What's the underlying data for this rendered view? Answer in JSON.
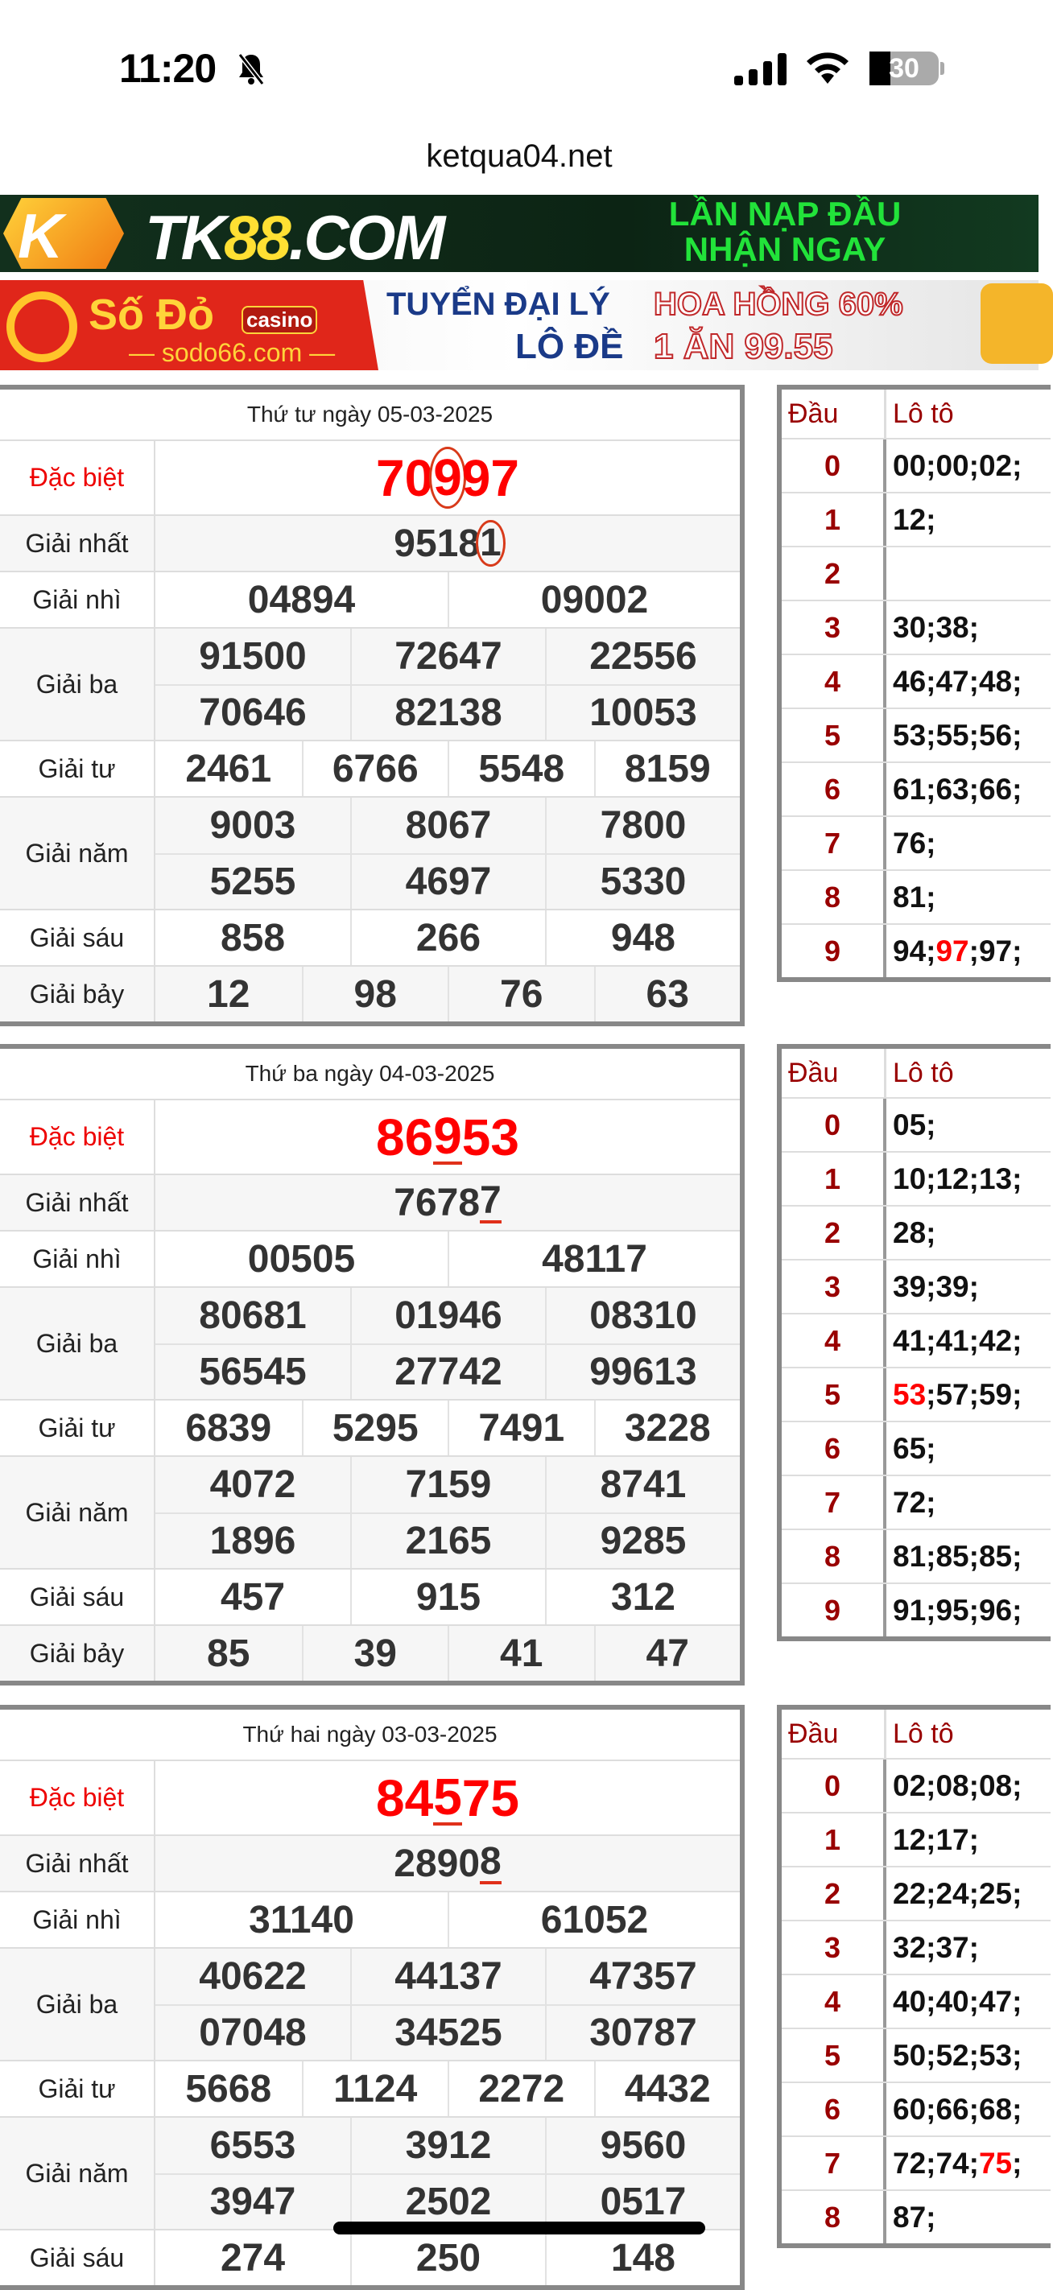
{
  "status_bar": {
    "time": "11:20",
    "silent_icon": "bell-slash-icon",
    "battery": "30"
  },
  "browser": {
    "url": "ketqua04.net"
  },
  "ads": {
    "tk88": {
      "logo": "K",
      "brand_prefix": "TK",
      "brand_num": "88",
      "brand_suffix": ".COM",
      "line1": "LẦN NẠP ĐẦU",
      "line2": "NHẬN NGAY"
    },
    "sodo": {
      "name": "Số Đỏ",
      "tag": "casino",
      "domain": "— sodo66.com —",
      "line1a": "TUYỂN ĐẠI LÝ",
      "line1b": "HOA HỒNG 60%",
      "line2a": "LÔ ĐỀ",
      "line2b": "1 ĂN 99.55"
    }
  },
  "labels": {
    "special": "Đặc biệt",
    "first": "Giải nhất",
    "second": "Giải nhì",
    "third": "Giải ba",
    "fourth": "Giải tư",
    "fifth": "Giải năm",
    "sixth": "Giải sáu",
    "seventh": "Giải bảy",
    "dau": "Đầu",
    "loto": "Lô tô"
  },
  "colors": {
    "special": "#ff0000",
    "dau": "#990000",
    "highlight": "#ff0000",
    "annotation": "#d83a1a"
  },
  "days": [
    {
      "title": "Thứ tư ngày 05-03-2025",
      "special": {
        "pre": "70",
        "mark": "9",
        "post": "97",
        "mark_type": "circle"
      },
      "first": {
        "pre": "9518",
        "mark": "1",
        "post": "",
        "mark_type": "circle"
      },
      "second": [
        "04894",
        "09002"
      ],
      "third": [
        "91500",
        "72647",
        "22556",
        "70646",
        "82138",
        "10053"
      ],
      "fourth": [
        "2461",
        "6766",
        "5548",
        "8159"
      ],
      "fifth": [
        "9003",
        "8067",
        "7800",
        "5255",
        "4697",
        "5330"
      ],
      "sixth": [
        "858",
        "266",
        "948"
      ],
      "seventh": [
        "12",
        "98",
        "76",
        "63"
      ],
      "loto": [
        {
          "head": "0",
          "nums": [
            {
              "n": "00"
            },
            {
              "n": "00"
            },
            {
              "n": "02"
            }
          ]
        },
        {
          "head": "1",
          "nums": [
            {
              "n": "12"
            }
          ]
        },
        {
          "head": "2",
          "nums": []
        },
        {
          "head": "3",
          "nums": [
            {
              "n": "30"
            },
            {
              "n": "38"
            }
          ]
        },
        {
          "head": "4",
          "nums": [
            {
              "n": "46"
            },
            {
              "n": "47"
            },
            {
              "n": "48"
            }
          ]
        },
        {
          "head": "5",
          "nums": [
            {
              "n": "53"
            },
            {
              "n": "55"
            },
            {
              "n": "56"
            }
          ]
        },
        {
          "head": "6",
          "nums": [
            {
              "n": "61"
            },
            {
              "n": "63"
            },
            {
              "n": "66"
            }
          ]
        },
        {
          "head": "7",
          "nums": [
            {
              "n": "76"
            }
          ]
        },
        {
          "head": "8",
          "nums": [
            {
              "n": "81"
            }
          ]
        },
        {
          "head": "9",
          "nums": [
            {
              "n": "94"
            },
            {
              "n": "97",
              "hot": true
            },
            {
              "n": "97"
            }
          ]
        }
      ]
    },
    {
      "title": "Thứ ba ngày 04-03-2025",
      "special": {
        "pre": "86",
        "mark": "9",
        "post": "53",
        "mark_type": "underline"
      },
      "first": {
        "pre": "7678",
        "mark": "7",
        "post": "",
        "mark_type": "underline"
      },
      "second": [
        "00505",
        "48117"
      ],
      "third": [
        "80681",
        "01946",
        "08310",
        "56545",
        "27742",
        "99613"
      ],
      "fourth": [
        "6839",
        "5295",
        "7491",
        "3228"
      ],
      "fifth": [
        "4072",
        "7159",
        "8741",
        "1896",
        "2165",
        "9285"
      ],
      "sixth": [
        "457",
        "915",
        "312"
      ],
      "seventh": [
        "85",
        "39",
        "41",
        "47"
      ],
      "loto": [
        {
          "head": "0",
          "nums": [
            {
              "n": "05"
            }
          ]
        },
        {
          "head": "1",
          "nums": [
            {
              "n": "10"
            },
            {
              "n": "12"
            },
            {
              "n": "13"
            }
          ]
        },
        {
          "head": "2",
          "nums": [
            {
              "n": "28"
            }
          ]
        },
        {
          "head": "3",
          "nums": [
            {
              "n": "39"
            },
            {
              "n": "39"
            }
          ]
        },
        {
          "head": "4",
          "nums": [
            {
              "n": "41"
            },
            {
              "n": "41"
            },
            {
              "n": "42"
            }
          ]
        },
        {
          "head": "5",
          "nums": [
            {
              "n": "53",
              "hot": true
            },
            {
              "n": "57"
            },
            {
              "n": "59"
            }
          ]
        },
        {
          "head": "6",
          "nums": [
            {
              "n": "65"
            }
          ]
        },
        {
          "head": "7",
          "nums": [
            {
              "n": "72"
            }
          ]
        },
        {
          "head": "8",
          "nums": [
            {
              "n": "81"
            },
            {
              "n": "85"
            },
            {
              "n": "85"
            }
          ]
        },
        {
          "head": "9",
          "nums": [
            {
              "n": "91"
            },
            {
              "n": "95"
            },
            {
              "n": "96"
            }
          ]
        }
      ]
    },
    {
      "title": "Thứ hai ngày 03-03-2025",
      "special": {
        "pre": "84",
        "mark": "5",
        "post": "75",
        "mark_type": "underline"
      },
      "first": {
        "pre": "2890",
        "mark": "8",
        "post": "",
        "mark_type": "underline"
      },
      "second": [
        "31140",
        "61052"
      ],
      "third": [
        "40622",
        "44137",
        "47357",
        "07048",
        "34525",
        "30787"
      ],
      "fourth": [
        "5668",
        "1124",
        "2272",
        "4432"
      ],
      "fifth": [
        "6553",
        "3912",
        "9560",
        "3947",
        "2502",
        "0517"
      ],
      "sixth": [
        "274",
        "250",
        "148"
      ],
      "seventh": [],
      "loto": [
        {
          "head": "0",
          "nums": [
            {
              "n": "02"
            },
            {
              "n": "08"
            },
            {
              "n": "08"
            }
          ]
        },
        {
          "head": "1",
          "nums": [
            {
              "n": "12"
            },
            {
              "n": "17"
            }
          ]
        },
        {
          "head": "2",
          "nums": [
            {
              "n": "22"
            },
            {
              "n": "24"
            },
            {
              "n": "25"
            }
          ]
        },
        {
          "head": "3",
          "nums": [
            {
              "n": "32"
            },
            {
              "n": "37"
            }
          ]
        },
        {
          "head": "4",
          "nums": [
            {
              "n": "40"
            },
            {
              "n": "40"
            },
            {
              "n": "47"
            }
          ]
        },
        {
          "head": "5",
          "nums": [
            {
              "n": "50"
            },
            {
              "n": "52"
            },
            {
              "n": "53"
            }
          ]
        },
        {
          "head": "6",
          "nums": [
            {
              "n": "60"
            },
            {
              "n": "66"
            },
            {
              "n": "68"
            }
          ]
        },
        {
          "head": "7",
          "nums": [
            {
              "n": "72"
            },
            {
              "n": "74"
            },
            {
              "n": "75",
              "hot": true
            }
          ]
        },
        {
          "head": "8",
          "nums": [
            {
              "n": "87"
            }
          ]
        }
      ]
    }
  ]
}
